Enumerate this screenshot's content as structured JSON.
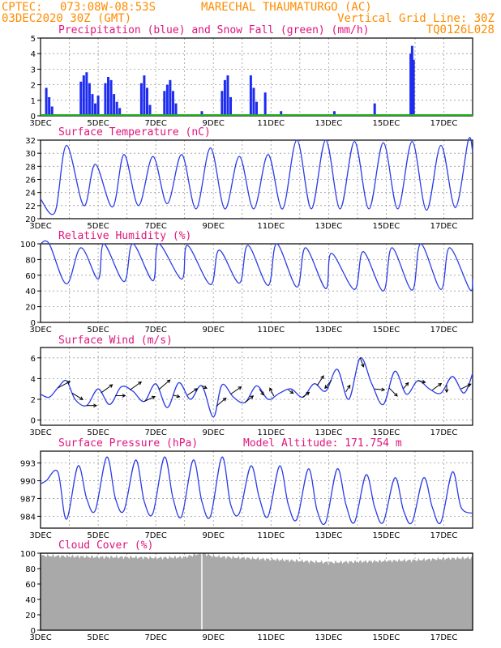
{
  "header": {
    "source": "CPTEC:",
    "coords": "073:08W-08:53S",
    "location": "MARECHAL THAUMATURGO (AC)",
    "run": "03DEC2020 30Z (GMT)",
    "grid_note": "Vertical Grid Line: 30Z",
    "code": "TQ0126L028"
  },
  "x_axis": {
    "start_day": 3,
    "end_day": 18,
    "labels": [
      "3DEC",
      "5DEC",
      "7DEC",
      "9DEC",
      "11DEC",
      "13DEC",
      "15DEC",
      "17DEC"
    ],
    "label_days": [
      3,
      5,
      7,
      9,
      11,
      13,
      15,
      17
    ]
  },
  "panels": {
    "precip": {
      "title": "Precipitation (blue) and Snow Fall (green) (mm/h)",
      "ylim": [
        0,
        5
      ],
      "yticks": [
        0,
        1,
        2,
        3,
        4,
        5
      ]
    },
    "temp": {
      "title": "Surface Temperature (nC)",
      "ylim": [
        20,
        32
      ],
      "yticks": [
        20,
        22,
        24,
        26,
        28,
        30,
        32
      ]
    },
    "rh": {
      "title": "Relative Humidity (%)",
      "ylim": [
        0,
        100
      ],
      "yticks": [
        0,
        20,
        40,
        60,
        80,
        100
      ]
    },
    "wind": {
      "title": "Surface Wind (m/s)",
      "ylim": [
        -0.5,
        7
      ],
      "yticks": [
        0,
        2,
        4,
        6
      ]
    },
    "pressure": {
      "title": "Surface Pressure (hPa)",
      "altitude": "Model Altitude: 171.754 m",
      "ylim": [
        982,
        995
      ],
      "yticks": [
        984,
        987,
        990,
        993
      ]
    },
    "cloud": {
      "title": "Cloud Cover (%)",
      "ylim": [
        0,
        100
      ],
      "yticks": [
        0,
        20,
        40,
        60,
        80,
        100
      ]
    }
  },
  "chart_data": [
    {
      "type": "bar",
      "title": "Precipitation (blue) and Snow Fall (green) (mm/h)",
      "ylim": [
        0,
        5
      ],
      "x": [
        3.2,
        3.3,
        3.4,
        4.4,
        4.5,
        4.6,
        4.7,
        4.8,
        4.9,
        5.0,
        5.25,
        5.35,
        5.45,
        5.55,
        5.65,
        5.75,
        6.5,
        6.6,
        6.7,
        6.8,
        7.3,
        7.4,
        7.5,
        7.6,
        7.7,
        8.6,
        9.3,
        9.4,
        9.5,
        9.6,
        10.3,
        10.4,
        10.5,
        10.8,
        11.35,
        13.2,
        14.6,
        15.85,
        15.9,
        15.95
      ],
      "values": [
        1.8,
        1.2,
        0.6,
        2.2,
        2.6,
        2.8,
        2.1,
        1.4,
        0.8,
        1.3,
        2.1,
        2.5,
        2.3,
        1.4,
        0.9,
        0.5,
        2.1,
        2.6,
        1.8,
        0.7,
        1.6,
        2.0,
        2.3,
        1.6,
        0.8,
        0.3,
        1.6,
        2.3,
        2.6,
        1.2,
        2.6,
        1.8,
        0.9,
        1.5,
        0.3,
        0.3,
        0.8,
        4.0,
        4.5,
        3.6
      ],
      "snowfall": 0
    },
    {
      "type": "line",
      "title": "Surface Temperature (nC)",
      "ylim": [
        20,
        32
      ],
      "x": [
        3.0,
        3.5,
        3.9,
        4.5,
        4.9,
        5.5,
        5.9,
        6.4,
        6.9,
        7.4,
        7.9,
        8.4,
        8.9,
        9.4,
        9.9,
        10.4,
        10.9,
        11.4,
        11.9,
        12.4,
        12.9,
        13.4,
        13.9,
        14.4,
        14.9,
        15.4,
        15.9,
        16.4,
        16.9,
        17.4,
        17.85,
        18.0
      ],
      "values": [
        23.0,
        21.0,
        31.2,
        22.0,
        28.3,
        21.8,
        29.8,
        22.0,
        29.5,
        22.3,
        29.8,
        21.5,
        30.8,
        21.5,
        29.5,
        21.5,
        29.8,
        21.5,
        32.0,
        21.5,
        32.0,
        21.5,
        31.8,
        21.5,
        31.6,
        21.5,
        31.8,
        21.3,
        31.2,
        21.7,
        32.0,
        30.3
      ]
    },
    {
      "type": "line",
      "title": "Relative Humidity (%)",
      "ylim": [
        0,
        100
      ],
      "x": [
        3.0,
        3.3,
        3.9,
        4.4,
        5.0,
        5.2,
        5.9,
        6.2,
        6.9,
        7.1,
        7.9,
        8.1,
        8.9,
        9.2,
        9.9,
        10.2,
        10.9,
        11.2,
        11.9,
        12.2,
        12.9,
        13.1,
        13.9,
        14.2,
        14.9,
        15.2,
        15.9,
        16.2,
        16.9,
        17.2,
        17.9,
        18.0
      ],
      "values": [
        100,
        100,
        49,
        95,
        55,
        100,
        52,
        100,
        53,
        100,
        55,
        98,
        48,
        92,
        50,
        98,
        47,
        100,
        45,
        95,
        43,
        88,
        42,
        90,
        40,
        95,
        41,
        100,
        42,
        95,
        42,
        55
      ]
    },
    {
      "type": "line",
      "title": "Surface Wind (m/s)",
      "ylim": [
        -0.5,
        7
      ],
      "x": [
        3.0,
        3.3,
        3.6,
        3.9,
        4.2,
        4.6,
        5.0,
        5.4,
        5.8,
        6.2,
        6.6,
        7.0,
        7.4,
        7.8,
        8.2,
        8.6,
        9.0,
        9.3,
        9.7,
        10.1,
        10.5,
        10.9,
        11.3,
        11.7,
        12.1,
        12.5,
        12.9,
        13.3,
        13.7,
        14.1,
        14.5,
        14.9,
        15.3,
        15.7,
        16.1,
        16.5,
        16.9,
        17.3,
        17.7,
        18.0
      ],
      "values": [
        2.5,
        2.2,
        3.1,
        3.8,
        2.0,
        1.4,
        3.0,
        1.5,
        3.2,
        2.8,
        1.8,
        3.5,
        1.2,
        3.6,
        2.0,
        3.3,
        0.3,
        3.4,
        2.2,
        1.7,
        3.3,
        2.0,
        2.6,
        3.0,
        2.2,
        3.5,
        2.8,
        4.9,
        2.0,
        6.0,
        3.5,
        1.5,
        4.7,
        2.5,
        3.8,
        3.0,
        2.6,
        4.2,
        2.6,
        4.5
      ]
    },
    {
      "type": "line",
      "title": "Surface Pressure (hPa)",
      "ylim": [
        982,
        995
      ],
      "x": [
        3.0,
        3.2,
        3.6,
        3.9,
        4.3,
        4.6,
        4.9,
        5.3,
        5.6,
        5.9,
        6.3,
        6.6,
        6.9,
        7.3,
        7.6,
        7.9,
        8.3,
        8.6,
        8.9,
        9.3,
        9.6,
        9.9,
        10.3,
        10.6,
        10.9,
        11.3,
        11.6,
        11.9,
        12.3,
        12.6,
        12.9,
        13.3,
        13.6,
        13.9,
        14.3,
        14.6,
        14.9,
        15.3,
        15.6,
        15.9,
        16.3,
        16.6,
        16.9,
        17.3,
        17.6,
        18.0
      ],
      "values": [
        989.5,
        990.0,
        991.5,
        983.5,
        992.5,
        987.0,
        985.0,
        994.0,
        987.0,
        985.0,
        993.5,
        986.5,
        984.5,
        994.0,
        987.0,
        984.0,
        993.5,
        986.5,
        984.0,
        994.0,
        986.0,
        984.5,
        992.5,
        987.0,
        984.0,
        992.5,
        986.0,
        983.5,
        992.0,
        985.0,
        983.0,
        992.0,
        986.0,
        983.0,
        991.0,
        985.5,
        983.0,
        990.5,
        985.0,
        983.0,
        990.5,
        985.5,
        983.0,
        991.5,
        985.5,
        984.5
      ]
    },
    {
      "type": "area",
      "title": "Cloud Cover (%)",
      "ylim": [
        0,
        100
      ],
      "x": [
        3.0,
        4.0,
        5.0,
        6.0,
        7.0,
        8.0,
        8.6,
        9.0,
        10.0,
        11.0,
        12.0,
        13.0,
        14.0,
        15.0,
        16.0,
        17.0,
        18.0
      ],
      "values": [
        97,
        96,
        95,
        95,
        94,
        95,
        100,
        96,
        94,
        92,
        90,
        88,
        89,
        90,
        91,
        93,
        94
      ]
    },
    {
      "type": "vector",
      "title": "Surface Wind (m/s)",
      "x": [
        3.6,
        4.1,
        4.6,
        5.1,
        5.6,
        6.1,
        6.6,
        7.1,
        7.6,
        8.1,
        8.6,
        9.1,
        9.6,
        10.1,
        10.6,
        11.1,
        11.6,
        12.1,
        12.6,
        13.1,
        13.6,
        14.1,
        14.6,
        15.1,
        15.6,
        16.1,
        16.6,
        17.1,
        17.6
      ],
      "u": [
        1.5,
        1.3,
        1.2,
        1.4,
        1.2,
        1.4,
        1.3,
        1.4,
        0.8,
        1.2,
        0.6,
        1.2,
        1.3,
        1.0,
        0.5,
        -0.5,
        0.6,
        0.8,
        0.8,
        -0.8,
        0.5,
        0.4,
        1.2,
        1.0,
        0.6,
        0.9,
        1.1,
        0.0,
        1.2
      ],
      "v": [
        0.8,
        -0.8,
        0.0,
        1.0,
        0.0,
        1.0,
        0.6,
        1.2,
        -0.2,
        0.8,
        -0.3,
        1.0,
        0.9,
        0.8,
        -0.7,
        1.0,
        -0.4,
        0.6,
        1.2,
        -1.0,
        0.8,
        -1.1,
        -0.1,
        -1.0,
        0.7,
        -0.2,
        0.8,
        -0.9,
        0.6
      ]
    }
  ]
}
